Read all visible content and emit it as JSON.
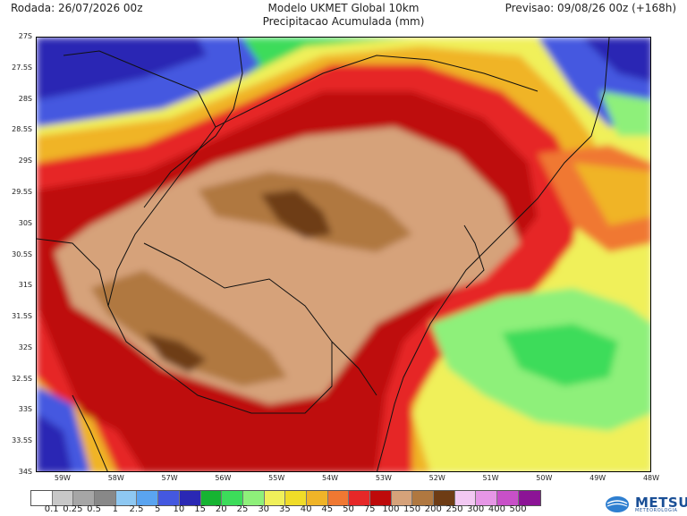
{
  "header": {
    "rodada": "Rodada: 26/07/2026 00z",
    "model": "Modelo UKMET Global 10km",
    "variable": "Precipitacao Acumulada (mm)",
    "previsao": "Previsao: 09/08/26 00z (+168h)"
  },
  "map": {
    "region": "Rio Grande do Sul / Uruguai",
    "lat_labels": [
      "27S",
      "27.5S",
      "28S",
      "28.5S",
      "29S",
      "29.5S",
      "30S",
      "30.5S",
      "31S",
      "31.5S",
      "32S",
      "32.5S",
      "33S",
      "33.5S",
      "34S"
    ],
    "lon_labels": [
      "59W",
      "58W",
      "57W",
      "56W",
      "55W",
      "54W",
      "53W",
      "52W",
      "51W",
      "50W",
      "49W",
      "48W"
    ],
    "lat_range": [
      -34,
      -27
    ],
    "lon_range": [
      -59.5,
      -48
    ]
  },
  "legend": {
    "unit": "mm",
    "bins": [
      {
        "label": "0.1",
        "color": "#ffffff"
      },
      {
        "label": "0.25",
        "color": "#c8c8c8"
      },
      {
        "label": "0.5",
        "color": "#a6a6a6"
      },
      {
        "label": "1",
        "color": "#888888"
      },
      {
        "label": "2.5",
        "color": "#8ec8f2"
      },
      {
        "label": "5",
        "color": "#5aa4f0"
      },
      {
        "label": "10",
        "color": "#4458e0"
      },
      {
        "label": "15",
        "color": "#2a28b4"
      },
      {
        "label": "20",
        "color": "#16b432"
      },
      {
        "label": "25",
        "color": "#3cdc5a"
      },
      {
        "label": "30",
        "color": "#8ef07a"
      },
      {
        "label": "35",
        "color": "#f0f05a"
      },
      {
        "label": "40",
        "color": "#f0dc28"
      },
      {
        "label": "45",
        "color": "#f0b428"
      },
      {
        "label": "50",
        "color": "#f07832"
      },
      {
        "label": "75",
        "color": "#e62828"
      },
      {
        "label": "100",
        "color": "#be0a0a"
      },
      {
        "label": "150",
        "color": "#d6a27a"
      },
      {
        "label": "200",
        "color": "#b07840"
      },
      {
        "label": "250",
        "color": "#6e3c14"
      },
      {
        "label": "300",
        "color": "#f2c8f2"
      },
      {
        "label": "400",
        "color": "#e696e6"
      },
      {
        "label": "500",
        "color": "#c850c8"
      },
      {
        "label": "",
        "color": "#8c1496"
      }
    ]
  },
  "logo": {
    "name": "METSUL",
    "tagline": "METEOROLOGIA"
  }
}
